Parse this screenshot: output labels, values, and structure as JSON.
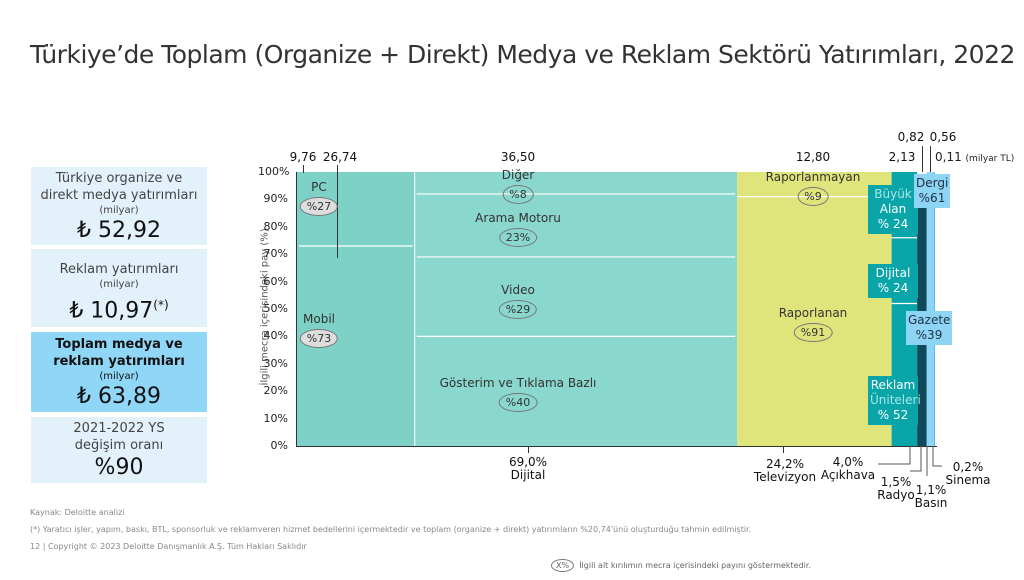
{
  "title": "Türkiye’de Toplam (Organize + Direkt) Medya ve Reklam Sektörü Yatırımları, 2022",
  "cards": [
    {
      "title": "Türkiye organize ve direkt medya yatırımları",
      "unit": "(milyar)",
      "value": "₺ 52,92"
    },
    {
      "title": "Reklam yatırımları",
      "unit": "(milyar)",
      "value": "₺ 10,97",
      "sup": "(*)"
    },
    {
      "title": "Toplam medya ve reklam yatırımları",
      "unit": "(milyar)",
      "value": "₺ 63,89"
    },
    {
      "title": "2021-2022 YS değişim oranı",
      "value": "%90"
    }
  ],
  "chart_data": {
    "type": "mekko",
    "ylabel": "İlgili mecra içerisindeki pay (%)",
    "yticks": [
      "0%",
      "10%",
      "20%",
      "30%",
      "40%",
      "50%",
      "60%",
      "70%",
      "80%",
      "90%",
      "100%"
    ],
    "ylim": [
      0,
      100
    ],
    "unit_label": "(milyar TL)",
    "columns": [
      {
        "name": "Dijital",
        "share": 69.0,
        "share_label": "69,0%",
        "color": "#86d6cc",
        "sub_columns": [
          {
            "value": 9.76,
            "value_label": "9,76",
            "color": "#7dd1c6",
            "segments": [
              {
                "name": "Mobil",
                "pct": 73,
                "label": "%73"
              },
              {
                "name": "PC",
                "pct": 27,
                "label": "%27"
              }
            ]
          },
          {
            "value": 26.74,
            "value_label": "26,74",
            "color": "#8ad7ce",
            "segments": [
              {
                "name": "Gösterim ve Tıklama Bazlı",
                "pct": 40,
                "label": "%40"
              },
              {
                "name": "Video",
                "pct": 29,
                "label": "%29"
              },
              {
                "name": "Arama Motoru",
                "pct": 23,
                "label": "23%"
              },
              {
                "name": "Diğer",
                "pct": 8,
                "label": "%8"
              }
            ]
          }
        ],
        "total_label": "36,50"
      },
      {
        "name": "Televizyon",
        "share": 24.2,
        "share_label": "24,2%",
        "color": "#dfe57b",
        "value_label": "12,80",
        "segments": [
          {
            "name": "Raporlanan",
            "pct": 91,
            "label": "%91"
          },
          {
            "name": "Raporlanmayan",
            "pct": 9,
            "label": "%9"
          }
        ]
      },
      {
        "name": "Açıkhava",
        "share": 4.0,
        "share_label": "4,0%",
        "color": "#0aa5a9",
        "value_label": "2,13",
        "segments": [
          {
            "name": "Reklam Üniteleri",
            "pct": 52,
            "label": "% 52"
          },
          {
            "name": "Dijital",
            "pct": 24,
            "label": "% 24"
          },
          {
            "name": "Büyük Alan",
            "pct": 24,
            "label": "% 24"
          }
        ]
      },
      {
        "name": "Radyo",
        "share": 1.5,
        "share_label": "1,5%",
        "color": "#0e4a59",
        "value_label": "0,82",
        "segments": [
          {
            "name": "Radyo",
            "pct": 100
          }
        ]
      },
      {
        "name": "Basın",
        "share": 1.1,
        "share_label": "1,1%",
        "color": "#8ed4f5",
        "value_label": "0,56",
        "segments": [
          {
            "name": "Gazete",
            "pct": 39,
            "label": "%39"
          },
          {
            "name": "Dergi",
            "pct": 61,
            "label": "%61"
          }
        ]
      },
      {
        "name": "Sinema",
        "share": 0.2,
        "share_label": "0,2%",
        "color": "#5dbde3",
        "value_label": "0,11",
        "segments": [
          {
            "name": "Sinema",
            "pct": 100
          }
        ]
      }
    ],
    "segment_labels": {
      "pc": "PC",
      "mobil": "Mobil",
      "diger": "Diğer",
      "arama": "Arama Motoru",
      "video": "Video",
      "gosterim": "Gösterim ve Tıklama Bazlı",
      "raporlanmayan": "Raporlanmayan",
      "raporlanan": "Raporlanan",
      "buyuk1": "Büyük",
      "buyuk2": "Alan",
      "dijital": "Dijital",
      "reklam1": "Reklam",
      "reklam2": "Üniteleri",
      "dergi": "Dergi",
      "gazete": "Gazete"
    }
  },
  "footer": {
    "source": "Kaynak: Deloitte analizi",
    "note": "(*) Yaratıcı işler, yapım, baskı, BTL, sponsorluk ve reklamveren hizmet bedellerini içermektedir ve toplam (organize + direkt) yatırımların %20,74'ünü oluşturduğu tahmin edilmiştir.",
    "page": "12",
    "copyright": "|  Copyright © 2023 Deloitte Danışmanlık A.Ş. Tüm Hakları Saklıdır",
    "legend_symbol": "X%",
    "legend_text": "İlgili alt kırılımın mecra içerisindeki payını göstermektedir."
  }
}
